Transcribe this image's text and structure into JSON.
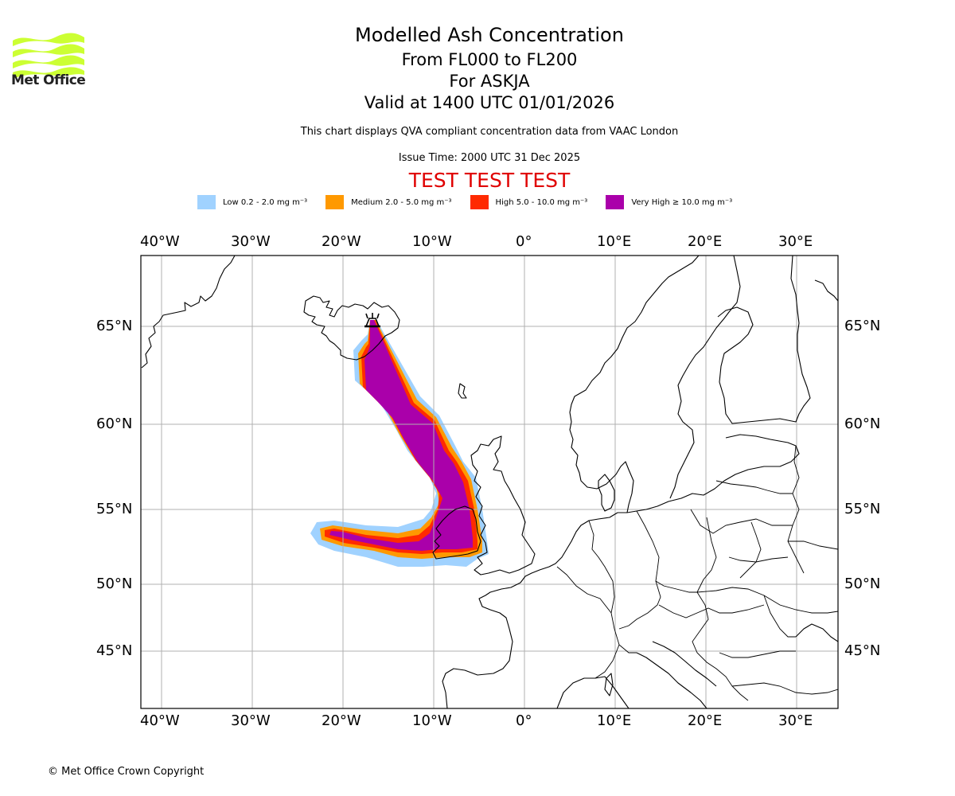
{
  "logo": {
    "name": "Met Office",
    "color": "#ccff33"
  },
  "header": {
    "title": "Modelled Ash Concentration",
    "levels": "From FL000 to FL200",
    "volcano": "For ASKJA",
    "valid": "Valid at 1400 UTC 01/01/2026",
    "source": "This chart displays QVA compliant concentration data from VAAC London",
    "issue": "Issue Time: 2000 UTC 31 Dec 2025",
    "test_banner": "TEST TEST TEST"
  },
  "legend": [
    {
      "label": "Low 0.2 - 2.0 mg m⁻³",
      "color": "#a0d2ff"
    },
    {
      "label": "Medium 2.0 - 5.0 mg m⁻³",
      "color": "#ff9900"
    },
    {
      "label": "High 5.0 - 10.0 mg m⁻³",
      "color": "#ff2a00"
    },
    {
      "label": "Very High  ≥  10.0 mg m⁻³",
      "color": "#aa00aa"
    }
  ],
  "axes": {
    "lon_labels": [
      "40°W",
      "30°W",
      "20°W",
      "10°W",
      "0°",
      "10°E",
      "20°E",
      "30°E"
    ],
    "lat_labels": [
      "65°N",
      "60°N",
      "55°N",
      "50°N",
      "45°N"
    ]
  },
  "volcano_marker": {
    "name": "ASKJA",
    "icon": "volcano-icon"
  },
  "footer": {
    "copyright": "© Met Office Crown Copyright"
  }
}
